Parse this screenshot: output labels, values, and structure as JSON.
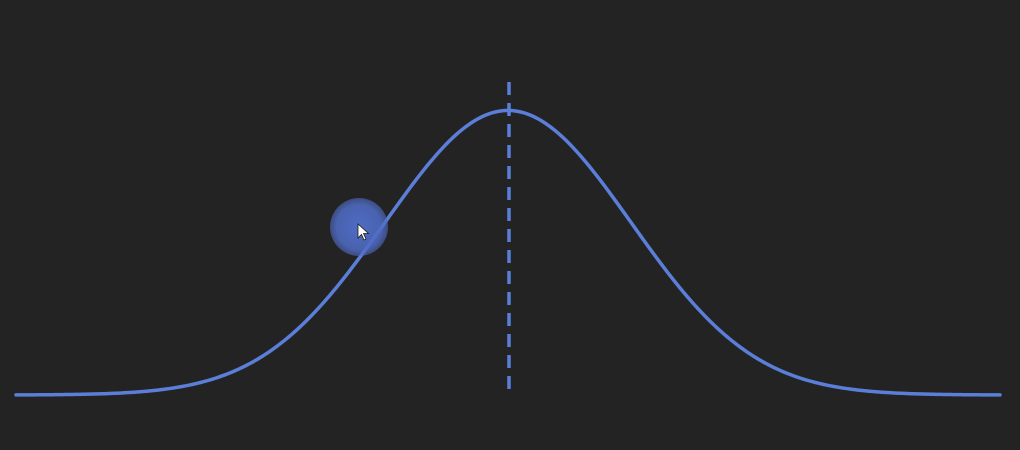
{
  "chart_data": {
    "type": "line",
    "title": "",
    "xlabel": "",
    "ylabel": "",
    "xlim": [
      -4,
      4
    ],
    "ylim": [
      0,
      1.1
    ],
    "grid": false,
    "series": [
      {
        "kind": "normal-density",
        "mean": 0,
        "std": 1,
        "peak": 1,
        "color": "#5b7fd9"
      }
    ],
    "reference_line": {
      "style": "dashed",
      "x": 0,
      "color": "#5b7fd9"
    }
  },
  "cursor": {
    "icon": "mouse-pointer-icon",
    "highlight_color": "#4f6cc4"
  },
  "background": "#232323"
}
